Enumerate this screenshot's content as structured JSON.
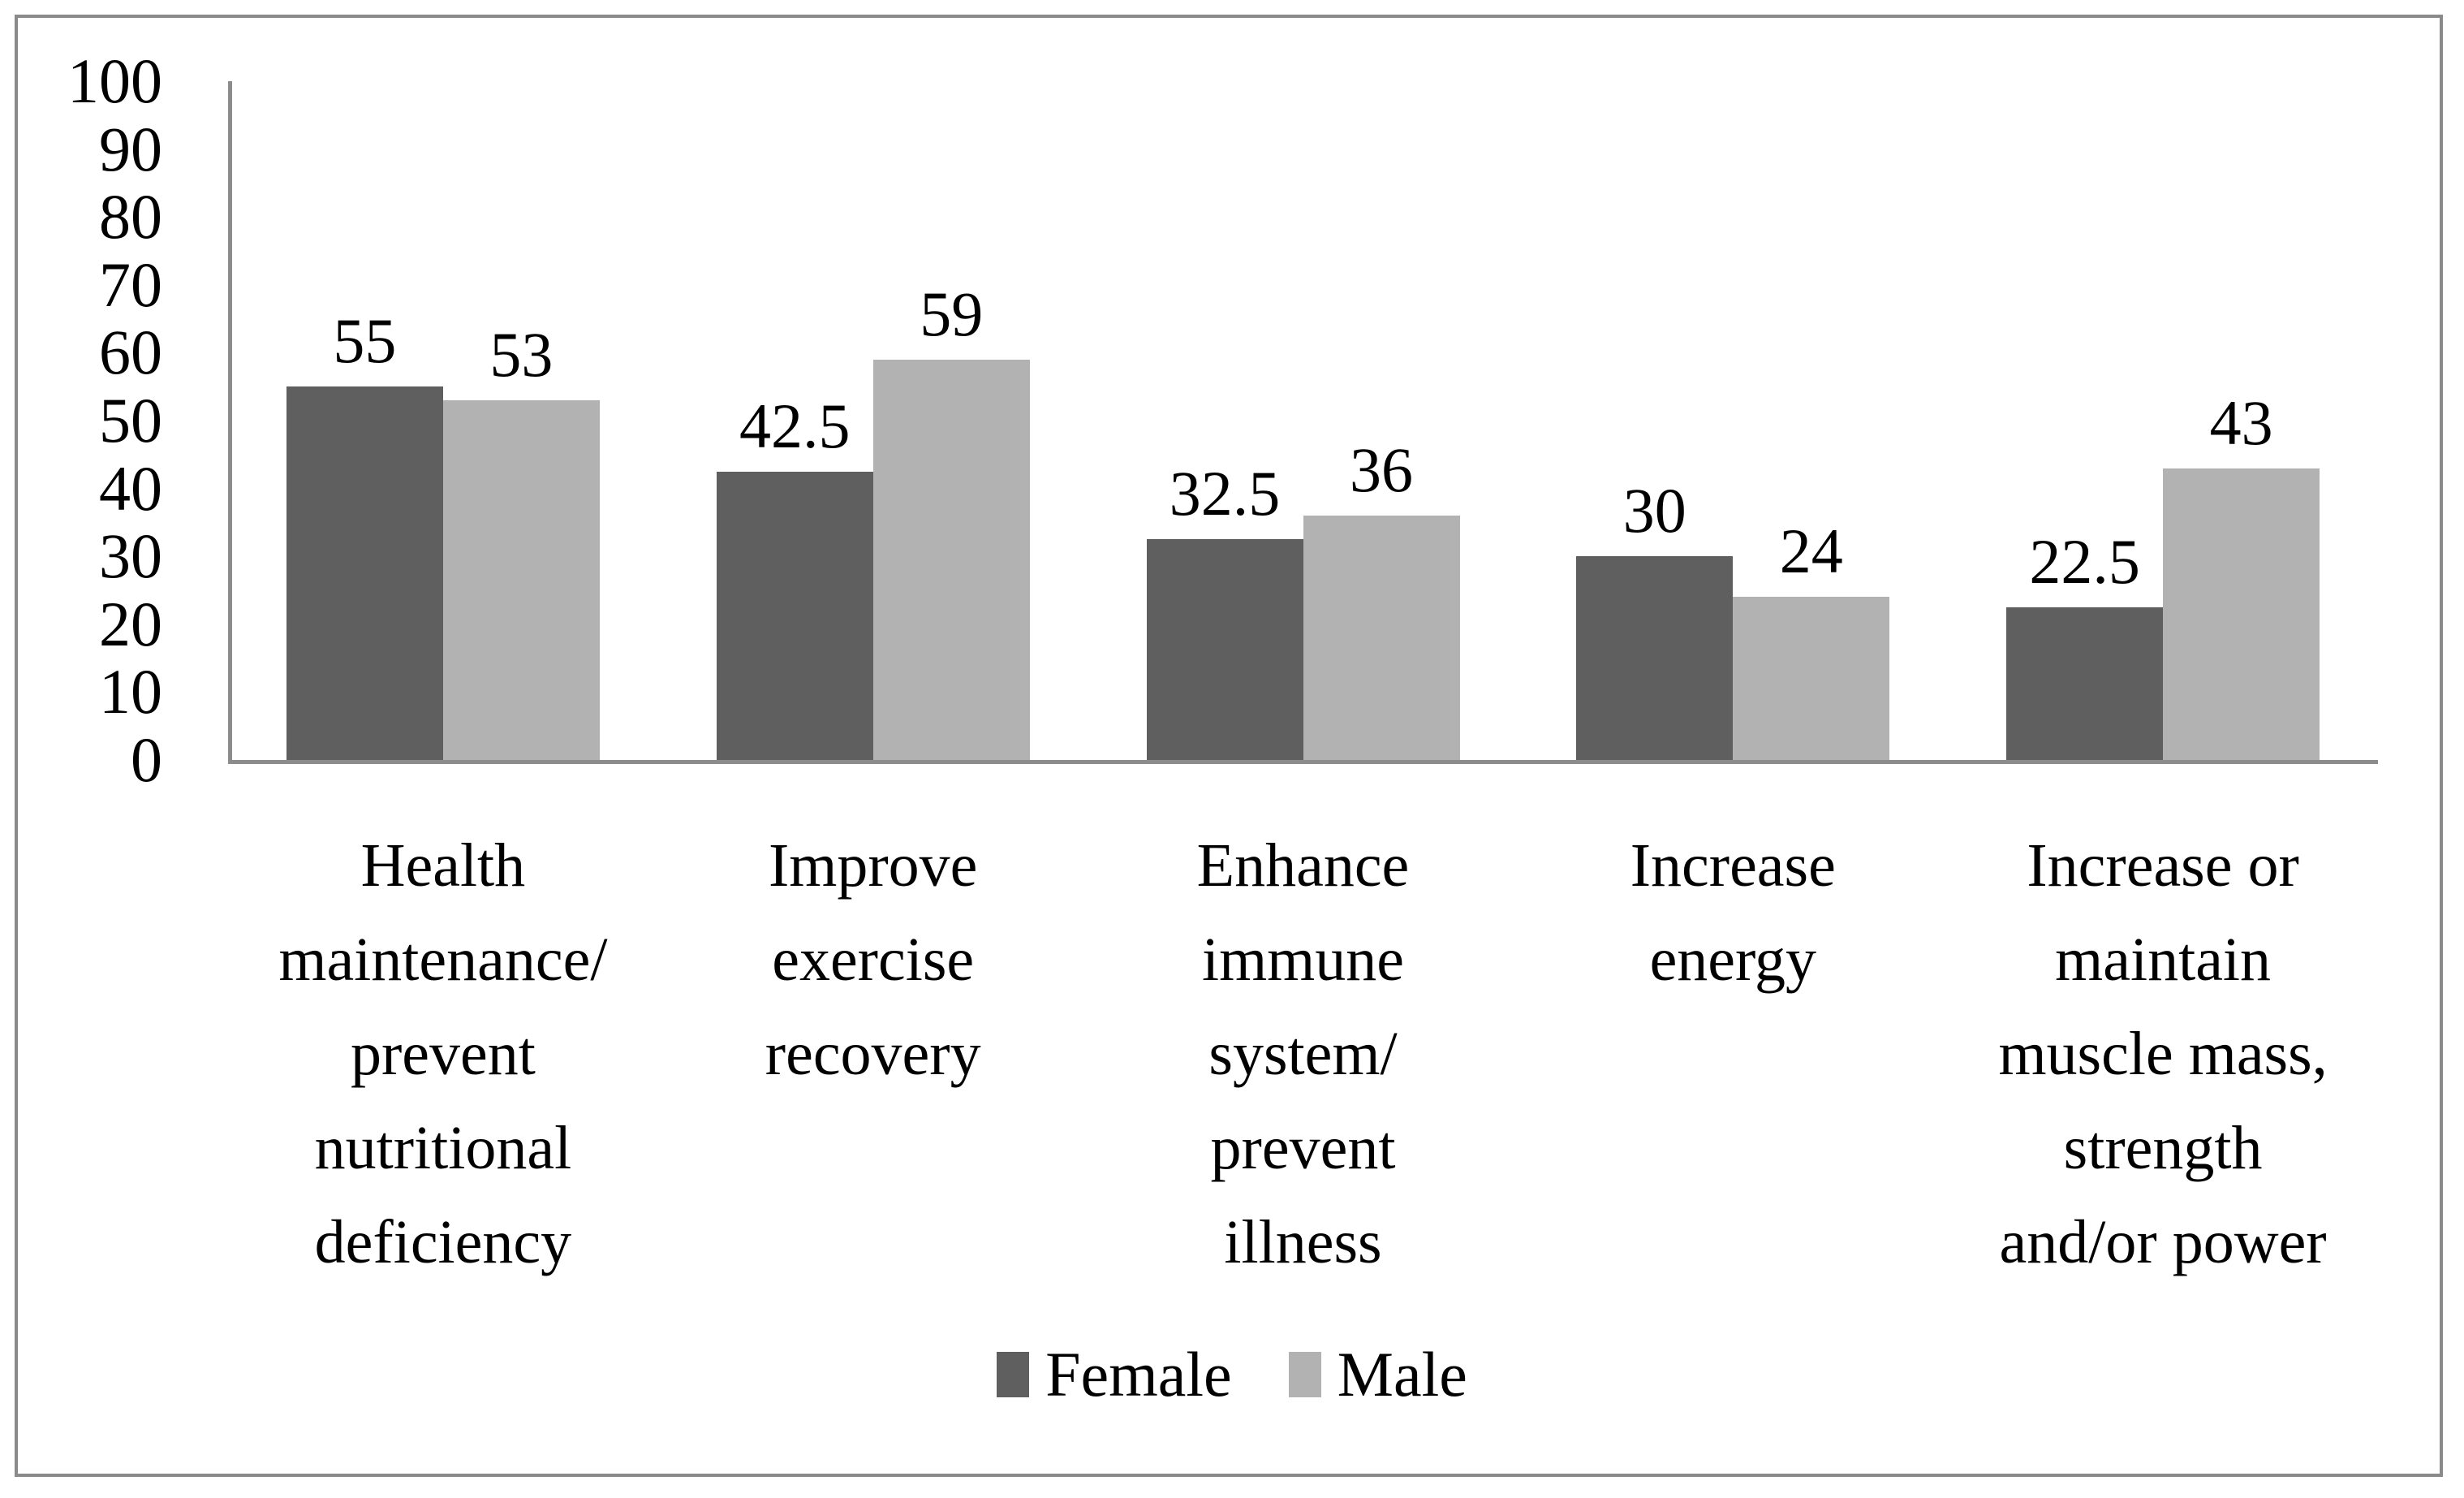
{
  "figure": {
    "background": "#ffffff",
    "border_color": "#8a8a8a",
    "axis_color": "#8c8c8c"
  },
  "legend": {
    "items": [
      {
        "label": "Female",
        "color": "#5f5f5f"
      },
      {
        "label": "Male",
        "color": "#b2b2b2"
      }
    ]
  },
  "chart_data": {
    "type": "bar",
    "title": "",
    "xlabel": "",
    "ylabel": "",
    "categories": [
      [
        "Health",
        "maintenance/",
        "prevent",
        "nutritional",
        "deficiency"
      ],
      [
        "Improve",
        "exercise",
        "recovery"
      ],
      [
        "Enhance",
        "immune",
        "system/",
        "prevent",
        "illness"
      ],
      [
        "Increase",
        "energy"
      ],
      [
        "Increase or",
        "maintain",
        "muscle mass,",
        "strength",
        "and/or power"
      ]
    ],
    "series": [
      {
        "name": "Female",
        "color": "#5f5f5f",
        "values": [
          55,
          42.5,
          32.5,
          30,
          22.5
        ]
      },
      {
        "name": "Male",
        "color": "#b2b2b2",
        "values": [
          53,
          59,
          36,
          24,
          43
        ]
      }
    ],
    "ylim": [
      0,
      100
    ],
    "ytick_step": 10,
    "yticks": [
      0,
      10,
      20,
      30,
      40,
      50,
      60,
      70,
      80,
      90,
      100
    ],
    "grid": false,
    "data_labels": true,
    "legend_position": "bottom"
  }
}
